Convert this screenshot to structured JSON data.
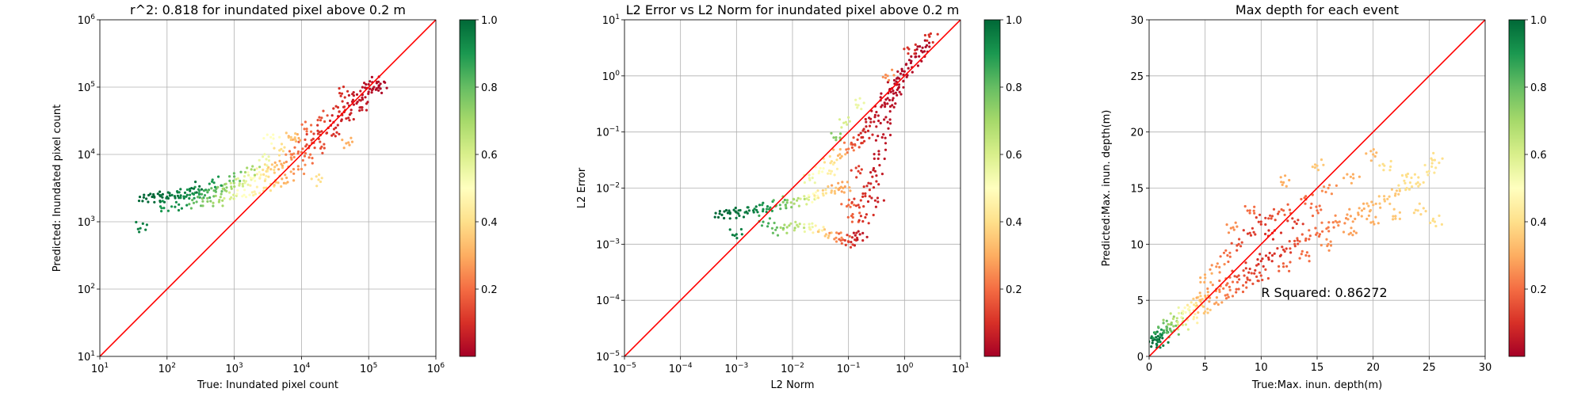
{
  "chart_data": [
    {
      "type": "scatter",
      "title": "r^2: 0.818 for inundated pixel above 0.2 m",
      "xlabel": "True: Inundated pixel count",
      "ylabel": "Predicted: Inundated pixel count",
      "xscale": "log",
      "yscale": "log",
      "xlim": [
        10,
        1000000
      ],
      "ylim": [
        10,
        1000000
      ],
      "xticks": [
        {
          "v": 10,
          "b": "10",
          "e": "1"
        },
        {
          "v": 100,
          "b": "10",
          "e": "2"
        },
        {
          "v": 1000,
          "b": "10",
          "e": "3"
        },
        {
          "v": 10000,
          "b": "10",
          "e": "4"
        },
        {
          "v": 100000,
          "b": "10",
          "e": "5"
        },
        {
          "v": 1000000,
          "b": "10",
          "e": "6"
        }
      ],
      "yticks": [
        {
          "v": 10,
          "b": "10",
          "e": "1"
        },
        {
          "v": 100,
          "b": "10",
          "e": "2"
        },
        {
          "v": 1000,
          "b": "10",
          "e": "3"
        },
        {
          "v": 10000,
          "b": "10",
          "e": "4"
        },
        {
          "v": 100000,
          "b": "10",
          "e": "5"
        },
        {
          "v": 1000000,
          "b": "10",
          "e": "6"
        }
      ],
      "grid": true,
      "reference_line": "y = x",
      "colormap": "RdYlGn",
      "colorbar": {
        "min": 0,
        "max": 1,
        "ticks": [
          "0.2",
          "0.4",
          "0.6",
          "0.8",
          "1.0"
        ]
      },
      "points": [
        [
          45,
          2300,
          1.0
        ],
        [
          60,
          2350,
          1.0
        ],
        [
          80,
          2400,
          1.0
        ],
        [
          100,
          2350,
          0.98
        ],
        [
          130,
          2400,
          0.97
        ],
        [
          160,
          2450,
          0.95
        ],
        [
          200,
          2500,
          0.93
        ],
        [
          250,
          2550,
          0.9
        ],
        [
          300,
          2650,
          0.88
        ],
        [
          400,
          2750,
          0.85
        ],
        [
          500,
          2900,
          0.8
        ],
        [
          700,
          3100,
          0.75
        ],
        [
          900,
          3300,
          0.7
        ],
        [
          1200,
          3700,
          0.62
        ],
        [
          1500,
          4000,
          0.56
        ],
        [
          2000,
          4600,
          0.5
        ],
        [
          2500,
          5000,
          0.45
        ],
        [
          3000,
          5600,
          0.4
        ],
        [
          4000,
          6500,
          0.35
        ],
        [
          5000,
          7200,
          0.3
        ],
        [
          7000,
          9000,
          0.25
        ],
        [
          9000,
          11000,
          0.2
        ],
        [
          12000,
          14000,
          0.15
        ],
        [
          15000,
          17000,
          0.12
        ],
        [
          20000,
          22000,
          0.1
        ],
        [
          30000,
          30000,
          0.08
        ],
        [
          40000,
          40000,
          0.06
        ],
        [
          60000,
          55000,
          0.05
        ],
        [
          80000,
          70000,
          0.04
        ],
        [
          100000,
          85000,
          0.03
        ],
        [
          120000,
          100000,
          0.03
        ],
        [
          140000,
          120000,
          0.02
        ],
        [
          40,
          800,
          0.95
        ],
        [
          90,
          1600,
          0.9
        ],
        [
          150,
          1800,
          0.92
        ],
        [
          250,
          1900,
          0.8
        ],
        [
          400,
          2000,
          0.75
        ],
        [
          600,
          2100,
          0.7
        ],
        [
          900,
          2300,
          0.6
        ],
        [
          1400,
          2500,
          0.5
        ],
        [
          2000,
          2800,
          0.45
        ],
        [
          3000,
          3200,
          0.4
        ],
        [
          4500,
          3800,
          0.35
        ],
        [
          6000,
          4500,
          0.3
        ],
        [
          9000,
          6000,
          0.25
        ],
        [
          13000,
          9000,
          0.2
        ],
        [
          20000,
          13000,
          0.15
        ],
        [
          30000,
          20000,
          0.1
        ],
        [
          50000,
          35000,
          0.08
        ],
        [
          80000,
          50000,
          0.06
        ],
        [
          250,
          3100,
          0.98
        ],
        [
          500,
          3800,
          0.9
        ],
        [
          1000,
          4700,
          0.8
        ],
        [
          1800,
          6000,
          0.7
        ],
        [
          3000,
          8500,
          0.55
        ],
        [
          5000,
          12000,
          0.4
        ],
        [
          8000,
          17000,
          0.3
        ],
        [
          12000,
          24000,
          0.2
        ],
        [
          20000,
          35000,
          0.15
        ],
        [
          35000,
          50000,
          0.1
        ],
        [
          60000,
          75000,
          0.06
        ],
        [
          100000,
          110000,
          0.04
        ],
        [
          3500,
          18000,
          0.5
        ],
        [
          18000,
          4200,
          0.4
        ],
        [
          50000,
          15000,
          0.3
        ],
        [
          7000,
          18000,
          0.35
        ],
        [
          40000,
          80000,
          0.1
        ],
        [
          150000,
          95000,
          0.02
        ]
      ]
    },
    {
      "type": "scatter",
      "title": "L2 Error vs L2 Norm for inundated pixel above 0.2 m",
      "xlabel": "L2 Norm",
      "ylabel": "L2 Error",
      "xscale": "log",
      "yscale": "log",
      "xlim": [
        1e-05,
        10
      ],
      "ylim": [
        1e-05,
        10
      ],
      "xticks": [
        {
          "v": 1e-05,
          "b": "10",
          "e": "−5"
        },
        {
          "v": 0.0001,
          "b": "10",
          "e": "−4"
        },
        {
          "v": 0.001,
          "b": "10",
          "e": "−3"
        },
        {
          "v": 0.01,
          "b": "10",
          "e": "−2"
        },
        {
          "v": 0.1,
          "b": "10",
          "e": "−1"
        },
        {
          "v": 1,
          "b": "10",
          "e": "0"
        },
        {
          "v": 10,
          "b": "10",
          "e": "1"
        }
      ],
      "yticks": [
        {
          "v": 1e-05,
          "b": "10",
          "e": "−5"
        },
        {
          "v": 0.0001,
          "b": "10",
          "e": "−4"
        },
        {
          "v": 0.001,
          "b": "10",
          "e": "−3"
        },
        {
          "v": 0.01,
          "b": "10",
          "e": "−2"
        },
        {
          "v": 0.1,
          "b": "10",
          "e": "−1"
        },
        {
          "v": 1,
          "b": "10",
          "e": "0"
        },
        {
          "v": 10,
          "b": "10",
          "e": "1"
        }
      ],
      "grid": true,
      "reference_line": "y = x",
      "colormap": "RdYlGn",
      "colorbar": {
        "min": 0,
        "max": 1,
        "ticks": [
          "0.2",
          "0.4",
          "0.6",
          "0.8",
          "1.0"
        ]
      },
      "points": [
        [
          0.0005,
          0.0035,
          1.0
        ],
        [
          0.0007,
          0.0036,
          1.0
        ],
        [
          0.001,
          0.0037,
          0.98
        ],
        [
          0.0015,
          0.0038,
          0.97
        ],
        [
          0.002,
          0.004,
          0.95
        ],
        [
          0.003,
          0.0042,
          0.92
        ],
        [
          0.004,
          0.0045,
          0.88
        ],
        [
          0.006,
          0.005,
          0.82
        ],
        [
          0.008,
          0.0055,
          0.75
        ],
        [
          0.012,
          0.006,
          0.68
        ],
        [
          0.018,
          0.0065,
          0.6
        ],
        [
          0.025,
          0.007,
          0.5
        ],
        [
          0.035,
          0.008,
          0.42
        ],
        [
          0.05,
          0.009,
          0.35
        ],
        [
          0.07,
          0.01,
          0.28
        ],
        [
          0.001,
          0.0015,
          0.95
        ],
        [
          0.003,
          0.0025,
          0.85
        ],
        [
          0.005,
          0.0018,
          0.8
        ],
        [
          0.008,
          0.002,
          0.7
        ],
        [
          0.012,
          0.0022,
          0.65
        ],
        [
          0.02,
          0.002,
          0.55
        ],
        [
          0.03,
          0.0018,
          0.45
        ],
        [
          0.04,
          0.0015,
          0.35
        ],
        [
          0.06,
          0.0013,
          0.25
        ],
        [
          0.08,
          0.0012,
          0.18
        ],
        [
          0.1,
          0.0011,
          0.12
        ],
        [
          0.13,
          0.0012,
          0.08
        ],
        [
          0.16,
          0.0015,
          0.05
        ],
        [
          0.02,
          0.015,
          0.55
        ],
        [
          0.03,
          0.02,
          0.5
        ],
        [
          0.05,
          0.03,
          0.4
        ],
        [
          0.07,
          0.04,
          0.32
        ],
        [
          0.1,
          0.05,
          0.22
        ],
        [
          0.13,
          0.06,
          0.15
        ],
        [
          0.17,
          0.08,
          0.1
        ],
        [
          0.2,
          0.1,
          0.08
        ],
        [
          0.25,
          0.15,
          0.06
        ],
        [
          0.3,
          0.2,
          0.05
        ],
        [
          0.4,
          0.3,
          0.04
        ],
        [
          0.5,
          0.4,
          0.03
        ],
        [
          0.6,
          0.6,
          0.03
        ],
        [
          0.8,
          0.9,
          0.02
        ],
        [
          1.0,
          1.2,
          0.02
        ],
        [
          1.3,
          1.7,
          0.02
        ],
        [
          1.6,
          2.2,
          0.02
        ],
        [
          2.0,
          2.8,
          0.02
        ],
        [
          2.5,
          3.5,
          0.02
        ],
        [
          0.1,
          0.005,
          0.2
        ],
        [
          0.15,
          0.005,
          0.12
        ],
        [
          0.2,
          0.008,
          0.1
        ],
        [
          0.25,
          0.012,
          0.08
        ],
        [
          0.3,
          0.02,
          0.06
        ],
        [
          0.35,
          0.04,
          0.05
        ],
        [
          0.4,
          0.08,
          0.05
        ],
        [
          0.5,
          0.15,
          0.04
        ],
        [
          0.6,
          0.3,
          0.04
        ],
        [
          0.7,
          0.5,
          0.03
        ],
        [
          0.8,
          0.7,
          0.03
        ],
        [
          0.05,
          0.02,
          0.45
        ],
        [
          0.08,
          0.01,
          0.3
        ],
        [
          0.12,
          0.003,
          0.18
        ],
        [
          0.2,
          0.003,
          0.1
        ],
        [
          0.3,
          0.006,
          0.07
        ],
        [
          0.15,
          0.02,
          0.12
        ],
        [
          0.09,
          0.15,
          0.6
        ],
        [
          0.06,
          0.08,
          0.75
        ],
        [
          0.15,
          0.3,
          0.55
        ],
        [
          0.5,
          1.0,
          0.25
        ],
        [
          1.2,
          3.0,
          0.1
        ],
        [
          2.8,
          5.0,
          0.1
        ]
      ]
    },
    {
      "type": "scatter",
      "title": "Max depth for each event",
      "xlabel": "True:Max. inun. depth(m)",
      "ylabel": "Predicted:Max. inun. depth(m)",
      "xscale": "linear",
      "yscale": "linear",
      "xlim": [
        0,
        30
      ],
      "ylim": [
        0,
        30
      ],
      "xticks": [
        {
          "v": 0,
          "t": "0"
        },
        {
          "v": 5,
          "t": "5"
        },
        {
          "v": 10,
          "t": "10"
        },
        {
          "v": 15,
          "t": "15"
        },
        {
          "v": 20,
          "t": "20"
        },
        {
          "v": 25,
          "t": "25"
        },
        {
          "v": 30,
          "t": "30"
        }
      ],
      "yticks": [
        {
          "v": 0,
          "t": "0"
        },
        {
          "v": 5,
          "t": "5"
        },
        {
          "v": 10,
          "t": "10"
        },
        {
          "v": 15,
          "t": "15"
        },
        {
          "v": 20,
          "t": "20"
        },
        {
          "v": 25,
          "t": "25"
        },
        {
          "v": 30,
          "t": "30"
        }
      ],
      "grid": true,
      "reference_line": "y = x",
      "colormap": "RdYlGn",
      "colorbar": {
        "min": 0,
        "max": 1,
        "ticks": [
          "0.2",
          "0.4",
          "0.6",
          "0.8",
          "1.0"
        ]
      },
      "annotation": {
        "text": "R Squared: 0.86272",
        "x": 10,
        "y": 5.3
      },
      "points": [
        [
          0.3,
          1.2,
          1.0
        ],
        [
          0.5,
          1.5,
          0.98
        ],
        [
          0.8,
          1.8,
          0.95
        ],
        [
          1.0,
          2.0,
          0.9
        ],
        [
          1.3,
          2.3,
          0.85
        ],
        [
          1.6,
          2.6,
          0.8
        ],
        [
          2.0,
          3.0,
          0.72
        ],
        [
          2.5,
          3.4,
          0.65
        ],
        [
          3.0,
          3.8,
          0.55
        ],
        [
          3.5,
          4.2,
          0.48
        ],
        [
          4.0,
          4.6,
          0.42
        ],
        [
          4.5,
          5.0,
          0.36
        ],
        [
          5.0,
          5.4,
          0.3
        ],
        [
          6.0,
          6.0,
          0.25
        ],
        [
          7.0,
          6.5,
          0.2
        ],
        [
          8.0,
          7.2,
          0.15
        ],
        [
          9.0,
          7.8,
          0.12
        ],
        [
          10.0,
          8.5,
          0.1
        ],
        [
          11.0,
          9.0,
          0.1
        ],
        [
          12.0,
          9.5,
          0.12
        ],
        [
          13.0,
          10.0,
          0.15
        ],
        [
          14.0,
          10.5,
          0.18
        ],
        [
          15.0,
          11.0,
          0.2
        ],
        [
          16.0,
          11.5,
          0.22
        ],
        [
          17.0,
          12.0,
          0.25
        ],
        [
          18.0,
          12.5,
          0.28
        ],
        [
          19.0,
          13.0,
          0.3
        ],
        [
          20.0,
          13.5,
          0.32
        ],
        [
          21.0,
          14.0,
          0.35
        ],
        [
          22.0,
          14.5,
          0.35
        ],
        [
          23.0,
          15.0,
          0.4
        ],
        [
          24.0,
          15.5,
          0.4
        ],
        [
          25.0,
          16.5,
          0.42
        ],
        [
          25.5,
          17.5,
          0.4
        ],
        [
          1.0,
          1.3,
          0.95
        ],
        [
          2.0,
          2.2,
          0.8
        ],
        [
          3.0,
          2.8,
          0.6
        ],
        [
          4.0,
          3.5,
          0.45
        ],
        [
          5.0,
          4.0,
          0.35
        ],
        [
          6.0,
          4.8,
          0.28
        ],
        [
          7.0,
          5.5,
          0.22
        ],
        [
          8.0,
          6.0,
          0.18
        ],
        [
          9.0,
          6.8,
          0.15
        ],
        [
          10.0,
          7.2,
          0.15
        ],
        [
          12.0,
          8.0,
          0.18
        ],
        [
          14.0,
          9.0,
          0.2
        ],
        [
          16.0,
          10.0,
          0.25
        ],
        [
          18.0,
          11.0,
          0.28
        ],
        [
          20.0,
          12.0,
          0.3
        ],
        [
          22.0,
          12.5,
          0.35
        ],
        [
          24.0,
          13.0,
          0.38
        ],
        [
          25.5,
          12.0,
          0.4
        ],
        [
          5.0,
          7.0,
          0.3
        ],
        [
          6.0,
          8.0,
          0.25
        ],
        [
          7.0,
          9.0,
          0.2
        ],
        [
          8.0,
          10.0,
          0.15
        ],
        [
          9.0,
          11.0,
          0.12
        ],
        [
          10.0,
          12.0,
          0.12
        ],
        [
          11.0,
          12.5,
          0.15
        ],
        [
          12.0,
          13.0,
          0.18
        ],
        [
          14.0,
          14.0,
          0.2
        ],
        [
          16.0,
          15.0,
          0.25
        ],
        [
          18.0,
          16.0,
          0.3
        ],
        [
          20.0,
          18.0,
          0.32
        ],
        [
          7.5,
          11.5,
          0.25
        ],
        [
          9.0,
          13.0,
          0.2
        ],
        [
          12.0,
          15.5,
          0.3
        ],
        [
          15.0,
          17.0,
          0.35
        ],
        [
          21.0,
          17.0,
          0.4
        ],
        [
          23.0,
          16.0,
          0.4
        ],
        [
          11.0,
          11.0,
          0.1
        ],
        [
          13.0,
          12.0,
          0.12
        ],
        [
          15.0,
          13.0,
          0.2
        ]
      ]
    }
  ]
}
